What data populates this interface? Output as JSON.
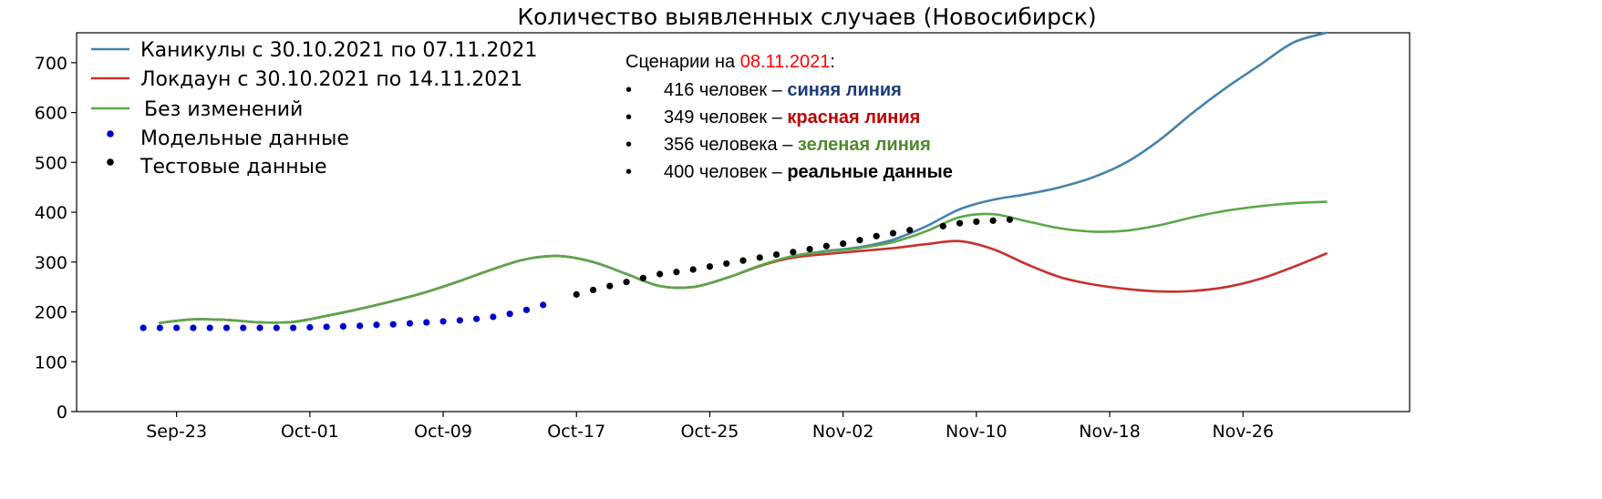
{
  "chart_data": {
    "type": "line",
    "title": "Количество выявленных случаев (Новосибирск)",
    "xlabel": "",
    "ylabel": "",
    "ylim": [
      0,
      760
    ],
    "yticks": [
      0,
      100,
      200,
      300,
      400,
      500,
      600,
      700
    ],
    "xticks": [
      {
        "date": "2021-09-23",
        "label": "Sep-23"
      },
      {
        "date": "2021-10-01",
        "label": "Oct-01"
      },
      {
        "date": "2021-10-09",
        "label": "Oct-09"
      },
      {
        "date": "2021-10-17",
        "label": "Oct-17"
      },
      {
        "date": "2021-10-25",
        "label": "Oct-25"
      },
      {
        "date": "2021-11-02",
        "label": "Nov-02"
      },
      {
        "date": "2021-11-10",
        "label": "Nov-10"
      },
      {
        "date": "2021-11-18",
        "label": "Nov-18"
      },
      {
        "date": "2021-11-26",
        "label": "Nov-26"
      }
    ],
    "xlim": [
      "2021-09-17",
      "2021-12-06"
    ],
    "grid": false,
    "legend_position": "top-left",
    "series": [
      {
        "name": "Каникулы с 30.10.2021 по 07.11.2021",
        "kind": "line",
        "color": "#4682ab",
        "points": [
          [
            "2021-09-22",
            178
          ],
          [
            "2021-09-24",
            185
          ],
          [
            "2021-09-26",
            184
          ],
          [
            "2021-09-28",
            179
          ],
          [
            "2021-09-30",
            180
          ],
          [
            "2021-10-02",
            192
          ],
          [
            "2021-10-04",
            206
          ],
          [
            "2021-10-06",
            222
          ],
          [
            "2021-10-08",
            240
          ],
          [
            "2021-10-10",
            262
          ],
          [
            "2021-10-12",
            286
          ],
          [
            "2021-10-14",
            306
          ],
          [
            "2021-10-16",
            312
          ],
          [
            "2021-10-18",
            300
          ],
          [
            "2021-10-20",
            276
          ],
          [
            "2021-10-22",
            252
          ],
          [
            "2021-10-24",
            250
          ],
          [
            "2021-10-26",
            268
          ],
          [
            "2021-10-28",
            292
          ],
          [
            "2021-10-30",
            312
          ],
          [
            "2021-11-01",
            322
          ],
          [
            "2021-11-03",
            330
          ],
          [
            "2021-11-05",
            345
          ],
          [
            "2021-11-07",
            372
          ],
          [
            "2021-11-09",
            406
          ],
          [
            "2021-11-11",
            425
          ],
          [
            "2021-11-13",
            436
          ],
          [
            "2021-11-15",
            450
          ],
          [
            "2021-11-17",
            470
          ],
          [
            "2021-11-19",
            500
          ],
          [
            "2021-11-21",
            545
          ],
          [
            "2021-11-23",
            600
          ],
          [
            "2021-11-25",
            650
          ],
          [
            "2021-11-27",
            695
          ],
          [
            "2021-11-29",
            740
          ],
          [
            "2021-12-01",
            760
          ]
        ]
      },
      {
        "name": "Локдаун с 30.10.2021 по 14.11.2021",
        "kind": "line",
        "color": "#c8302c",
        "points": [
          [
            "2021-09-22",
            178
          ],
          [
            "2021-09-24",
            185
          ],
          [
            "2021-09-26",
            184
          ],
          [
            "2021-09-28",
            179
          ],
          [
            "2021-09-30",
            180
          ],
          [
            "2021-10-02",
            192
          ],
          [
            "2021-10-04",
            206
          ],
          [
            "2021-10-06",
            222
          ],
          [
            "2021-10-08",
            240
          ],
          [
            "2021-10-10",
            262
          ],
          [
            "2021-10-12",
            286
          ],
          [
            "2021-10-14",
            306
          ],
          [
            "2021-10-16",
            312
          ],
          [
            "2021-10-18",
            300
          ],
          [
            "2021-10-20",
            276
          ],
          [
            "2021-10-22",
            252
          ],
          [
            "2021-10-24",
            250
          ],
          [
            "2021-10-26",
            268
          ],
          [
            "2021-10-28",
            292
          ],
          [
            "2021-10-30",
            309
          ],
          [
            "2021-11-01",
            316
          ],
          [
            "2021-11-03",
            322
          ],
          [
            "2021-11-05",
            328
          ],
          [
            "2021-11-07",
            336
          ],
          [
            "2021-11-09",
            342
          ],
          [
            "2021-11-11",
            326
          ],
          [
            "2021-11-13",
            296
          ],
          [
            "2021-11-15",
            270
          ],
          [
            "2021-11-17",
            255
          ],
          [
            "2021-11-19",
            246
          ],
          [
            "2021-11-21",
            241
          ],
          [
            "2021-11-23",
            242
          ],
          [
            "2021-11-25",
            250
          ],
          [
            "2021-11-27",
            266
          ],
          [
            "2021-11-29",
            290
          ],
          [
            "2021-12-01",
            317
          ]
        ]
      },
      {
        "name": "Без изменений",
        "kind": "line",
        "color": "#5aa84a",
        "points": [
          [
            "2021-09-22",
            178
          ],
          [
            "2021-09-24",
            185
          ],
          [
            "2021-09-26",
            184
          ],
          [
            "2021-09-28",
            179
          ],
          [
            "2021-09-30",
            180
          ],
          [
            "2021-10-02",
            192
          ],
          [
            "2021-10-04",
            206
          ],
          [
            "2021-10-06",
            222
          ],
          [
            "2021-10-08",
            240
          ],
          [
            "2021-10-10",
            262
          ],
          [
            "2021-10-12",
            286
          ],
          [
            "2021-10-14",
            306
          ],
          [
            "2021-10-16",
            312
          ],
          [
            "2021-10-18",
            300
          ],
          [
            "2021-10-20",
            276
          ],
          [
            "2021-10-22",
            252
          ],
          [
            "2021-10-24",
            250
          ],
          [
            "2021-10-26",
            268
          ],
          [
            "2021-10-28",
            293
          ],
          [
            "2021-10-30",
            312
          ],
          [
            "2021-11-01",
            321
          ],
          [
            "2021-11-03",
            328
          ],
          [
            "2021-11-05",
            340
          ],
          [
            "2021-11-07",
            362
          ],
          [
            "2021-11-09",
            390
          ],
          [
            "2021-11-11",
            396
          ],
          [
            "2021-11-13",
            382
          ],
          [
            "2021-11-15",
            368
          ],
          [
            "2021-11-17",
            361
          ],
          [
            "2021-11-19",
            363
          ],
          [
            "2021-11-21",
            374
          ],
          [
            "2021-11-23",
            390
          ],
          [
            "2021-11-25",
            403
          ],
          [
            "2021-11-27",
            412
          ],
          [
            "2021-11-29",
            418
          ],
          [
            "2021-12-01",
            421
          ]
        ]
      },
      {
        "name": "Модельные данные",
        "kind": "scatter",
        "color": "#0000cc",
        "points": [
          [
            "2021-09-21",
            168
          ],
          [
            "2021-09-22",
            168
          ],
          [
            "2021-09-23",
            168
          ],
          [
            "2021-09-24",
            168
          ],
          [
            "2021-09-25",
            168
          ],
          [
            "2021-09-26",
            168
          ],
          [
            "2021-09-27",
            168
          ],
          [
            "2021-09-28",
            168
          ],
          [
            "2021-09-29",
            168
          ],
          [
            "2021-09-30",
            168
          ],
          [
            "2021-10-01",
            169
          ],
          [
            "2021-10-02",
            170
          ],
          [
            "2021-10-03",
            171
          ],
          [
            "2021-10-04",
            172
          ],
          [
            "2021-10-05",
            174
          ],
          [
            "2021-10-06",
            175
          ],
          [
            "2021-10-07",
            177
          ],
          [
            "2021-10-08",
            179
          ],
          [
            "2021-10-09",
            181
          ],
          [
            "2021-10-10",
            183
          ],
          [
            "2021-10-11",
            186
          ],
          [
            "2021-10-12",
            190
          ],
          [
            "2021-10-13",
            196
          ],
          [
            "2021-10-14",
            204
          ],
          [
            "2021-10-15",
            214
          ]
        ]
      },
      {
        "name": "Тестовые данные",
        "kind": "scatter",
        "color": "#000000",
        "points": [
          [
            "2021-10-17",
            235
          ],
          [
            "2021-10-18",
            244
          ],
          [
            "2021-10-19",
            252
          ],
          [
            "2021-10-20",
            260
          ],
          [
            "2021-10-21",
            268
          ],
          [
            "2021-10-22",
            276
          ],
          [
            "2021-10-23",
            280
          ],
          [
            "2021-10-24",
            285
          ],
          [
            "2021-10-25",
            291
          ],
          [
            "2021-10-26",
            297
          ],
          [
            "2021-10-27",
            303
          ],
          [
            "2021-10-28",
            309
          ],
          [
            "2021-10-29",
            315
          ],
          [
            "2021-10-30",
            320
          ],
          [
            "2021-10-31",
            326
          ],
          [
            "2021-11-01",
            332
          ],
          [
            "2021-11-02",
            337
          ],
          [
            "2021-11-03",
            344
          ],
          [
            "2021-11-04",
            352
          ],
          [
            "2021-11-05",
            358
          ],
          [
            "2021-11-06",
            364
          ],
          [
            "2021-11-08",
            372
          ],
          [
            "2021-11-09",
            378
          ],
          [
            "2021-11-10",
            381
          ],
          [
            "2021-11-11",
            383
          ],
          [
            "2021-11-12",
            385
          ]
        ]
      }
    ],
    "annotation": {
      "heading_prefix": "Сценарии на ",
      "heading_date": "08.11.2021",
      "heading_suffix": ":",
      "date_color": "#ff0000",
      "bullet": "•",
      "items": [
        {
          "text": "416 человек – ",
          "highlight": "синяя линия",
          "color": "#1f3a78"
        },
        {
          "text": "349 человек – ",
          "highlight": "красная линия",
          "color": "#c00000"
        },
        {
          "text": "356 человека – ",
          "highlight": "зеленая линия",
          "color": "#4e8a2e"
        },
        {
          "text": "400 человек – ",
          "highlight": "реальные данные",
          "color": "#000000"
        }
      ]
    }
  }
}
